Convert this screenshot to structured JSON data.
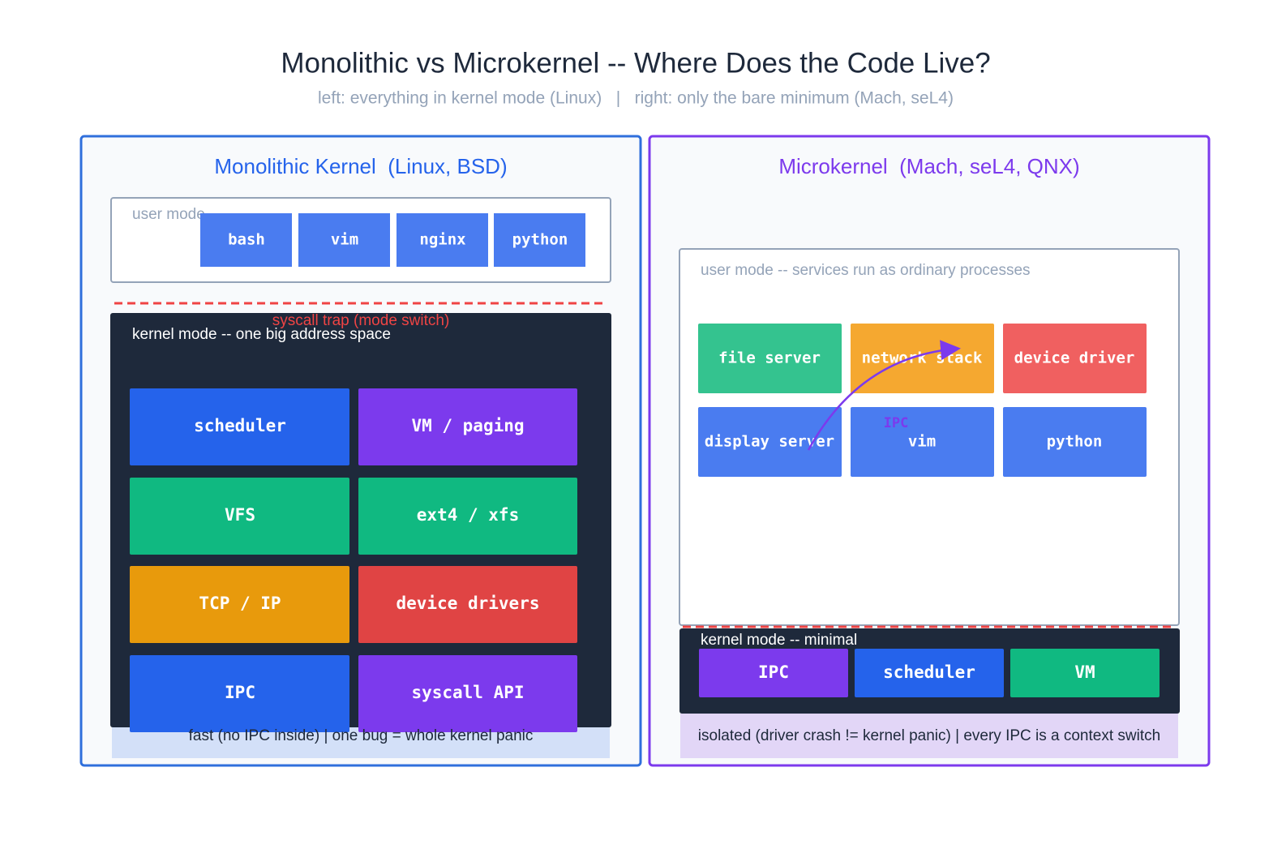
{
  "title": "Monolithic vs Microkernel -- Where Does the Code Live?",
  "subtitle": "left: everything in kernel mode (Linux)   |   right: only the bare minimum (Mach, seL4)",
  "monolithic": {
    "title": "Monolithic Kernel  (Linux, BSD)",
    "user_mode_label": "user mode",
    "user_programs": [
      "bash",
      "vim",
      "nginx",
      "python"
    ],
    "trap_label": "syscall trap (mode switch)",
    "kernel_mode_label": "kernel mode -- one big address space",
    "kernel_components": [
      "scheduler",
      "VM / paging",
      "VFS",
      "ext4 / xfs",
      "TCP / IP",
      "device drivers",
      "IPC",
      "syscall API"
    ],
    "footer": "fast (no IPC inside) | one bug = whole kernel panic"
  },
  "microkernel": {
    "title": "Microkernel  (Mach, seL4, QNX)",
    "user_mode_label": "user mode -- services run as ordinary processes",
    "services": [
      "file server",
      "network stack",
      "device driver",
      "display server",
      "vim",
      "python"
    ],
    "ipc_label": "IPC",
    "kernel_mode_label": "kernel mode -- minimal",
    "kernel_components": [
      "IPC",
      "scheduler",
      "VM"
    ],
    "footer": "isolated (driver crash != kernel panic) | every IPC is a context switch"
  }
}
